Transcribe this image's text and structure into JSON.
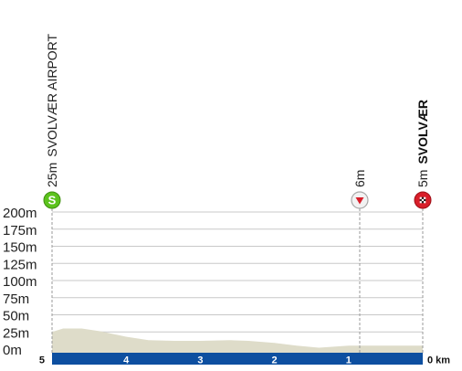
{
  "chart_data": {
    "type": "area",
    "x_unit": "km",
    "y_unit": "m",
    "x_ticks": [
      5,
      4,
      3,
      2,
      1,
      0
    ],
    "x_tick_labels": [
      "5",
      "4",
      "3",
      "2",
      "1",
      "0 km"
    ],
    "y_ticks": [
      "200m",
      "175m",
      "150m",
      "125m",
      "100m",
      "75m",
      "50m",
      "25m",
      "0m"
    ],
    "y_values": [
      200,
      175,
      150,
      125,
      100,
      75,
      50,
      25,
      0
    ],
    "ylim": [
      0,
      200
    ],
    "xlim": [
      5,
      0
    ],
    "profile": [
      {
        "km": 5.0,
        "alt": 25
      },
      {
        "km": 4.85,
        "alt": 30
      },
      {
        "km": 4.6,
        "alt": 30
      },
      {
        "km": 4.35,
        "alt": 26
      },
      {
        "km": 4.0,
        "alt": 18
      },
      {
        "km": 3.7,
        "alt": 13
      },
      {
        "km": 3.35,
        "alt": 12
      },
      {
        "km": 3.0,
        "alt": 12
      },
      {
        "km": 2.6,
        "alt": 13
      },
      {
        "km": 2.35,
        "alt": 12
      },
      {
        "km": 2.0,
        "alt": 9
      },
      {
        "km": 1.7,
        "alt": 5
      },
      {
        "km": 1.4,
        "alt": 2
      },
      {
        "km": 1.0,
        "alt": 5
      },
      {
        "km": 0.5,
        "alt": 5
      },
      {
        "km": 0.0,
        "alt": 5
      }
    ],
    "markers": [
      {
        "km": 5.0,
        "altitude": "25m",
        "name": "SVOLVÆR AIRPORT",
        "icon": "start-icon",
        "color": "#5cc31d",
        "symbol": "S",
        "bold": false
      },
      {
        "km": 0.85,
        "altitude": "6m",
        "name": "",
        "icon": "triangle-down-icon",
        "color": "#d81e2a",
        "symbol": "",
        "bold": false
      },
      {
        "km": 0.0,
        "altitude": "5m",
        "name": "SVOLVÆR",
        "icon": "finish-flag-icon",
        "color": "#d81e2a",
        "symbol": "",
        "bold": true
      }
    ],
    "colors": {
      "terrain": "#dedcc9",
      "km_bar": "#0d4fa0",
      "grid": "#c8c8c8"
    },
    "grid": true
  }
}
